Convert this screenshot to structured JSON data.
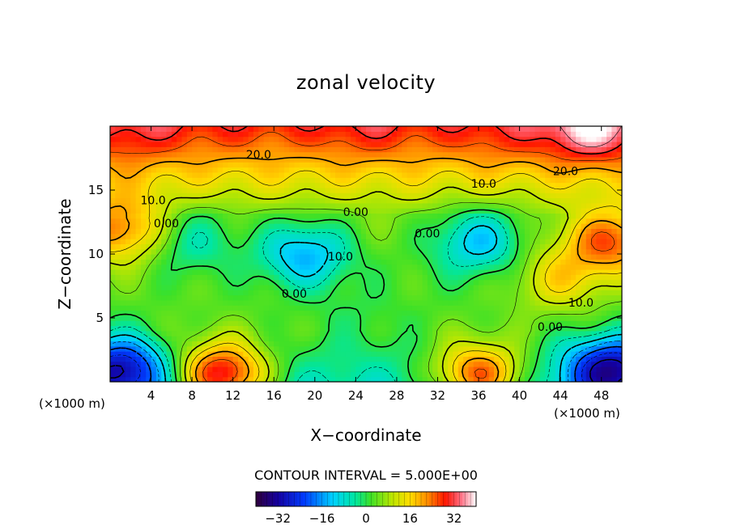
{
  "chart_data": {
    "type": "heatmap",
    "title": "zonal velocity",
    "xlabel": "X−coordinate",
    "ylabel": "Z−coordinate",
    "x_unit": "(×1000 m)",
    "z_unit": "(×1000 m)",
    "xlim": [
      0,
      50
    ],
    "ylim": [
      0,
      20
    ],
    "x_ticks": [
      "4",
      "8",
      "12",
      "16",
      "20",
      "24",
      "28",
      "32",
      "36",
      "40",
      "44",
      "48"
    ],
    "y_ticks": [
      "5",
      "10",
      "15"
    ],
    "contour_interval_text": "CONTOUR INTERVAL = 5.000E+00",
    "contour_labels": [
      {
        "text": "20.0",
        "x": 14.5,
        "z": 17.8
      },
      {
        "text": "20.0",
        "x": 44.5,
        "z": 16.5
      },
      {
        "text": "10.0",
        "x": 36.5,
        "z": 15.5
      },
      {
        "text": "10.0",
        "x": 4.2,
        "z": 14.2
      },
      {
        "text": "0.00",
        "x": 5.5,
        "z": 12.4
      },
      {
        "text": "0.00",
        "x": 24.0,
        "z": 13.3
      },
      {
        "text": "0.00",
        "x": 31.0,
        "z": 11.6
      },
      {
        "text": "10.0",
        "x": 22.5,
        "z": 9.8
      },
      {
        "text": "0.00",
        "x": 18.0,
        "z": 6.9
      },
      {
        "text": "10.0",
        "x": 46.0,
        "z": 6.2
      },
      {
        "text": "0.00",
        "x": 43.0,
        "z": 4.3
      }
    ],
    "colorbar": {
      "min": -40,
      "max": 40,
      "ticks": [
        "−32",
        "−16",
        "0",
        "16",
        "32"
      ],
      "tick_values": [
        -32,
        -16,
        0,
        16,
        32
      ]
    },
    "features": [
      {
        "x": 2,
        "z": 19,
        "v": 30
      },
      {
        "x": 47,
        "z": 19.5,
        "v": 40
      },
      {
        "x": 25,
        "z": 19.5,
        "v": 30
      },
      {
        "x": 10,
        "z": 19,
        "v": 26
      },
      {
        "x": 38,
        "z": 19,
        "v": 28
      },
      {
        "x": 19,
        "z": 10,
        "v": -14
      },
      {
        "x": 36,
        "z": 11,
        "v": -12
      },
      {
        "x": 8,
        "z": 11,
        "v": -5
      },
      {
        "x": 1,
        "z": 1,
        "v": -32
      },
      {
        "x": 49,
        "z": 1,
        "v": -34
      },
      {
        "x": 11,
        "z": 0.5,
        "v": 30
      },
      {
        "x": 36,
        "z": 0.5,
        "v": 24
      },
      {
        "x": 1,
        "z": 12,
        "v": 24
      },
      {
        "x": 49,
        "z": 11,
        "v": 25
      },
      {
        "x": 44,
        "z": 8,
        "v": 15
      },
      {
        "x": 6,
        "z": 4,
        "v": 3
      },
      {
        "x": 18,
        "z": 5,
        "v": 3
      },
      {
        "x": 24,
        "z": 5,
        "v": 0
      },
      {
        "x": 29,
        "z": 9,
        "v": 3
      }
    ]
  }
}
